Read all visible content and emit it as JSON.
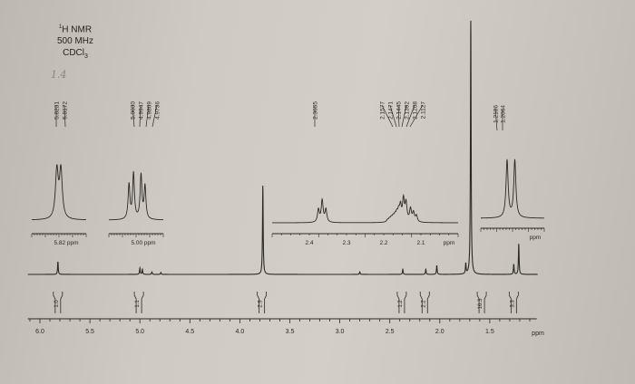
{
  "header": {
    "nucleus": "1H NMR",
    "nucleus_sup": "1",
    "nucleus_main": "H NMR",
    "frequency": "500 MHz",
    "solvent": "CDCl3",
    "solvent_main": "CDCl",
    "solvent_sub": "3"
  },
  "handwritten_note": "1.4",
  "chart_data": {
    "type": "line",
    "title": "",
    "xlabel": "ppm",
    "xlim": [
      6.1,
      1.05
    ],
    "x_reversed": true,
    "grid": false,
    "x_ticks": [
      "6.0",
      "5.5",
      "5.0",
      "4.5",
      "4.0",
      "3.5",
      "3.0",
      "2.5",
      "2.0",
      "1.5"
    ],
    "x_tick_values": [
      6.0,
      5.5,
      5.0,
      4.5,
      4.0,
      3.5,
      3.0,
      2.5,
      2.0,
      1.5
    ],
    "peaks": [
      {
        "ppm": 5.82,
        "rel_height": 0.05
      },
      {
        "ppm": 5.0,
        "rel_height": 0.025
      },
      {
        "ppm": 4.975,
        "rel_height": 0.02
      },
      {
        "ppm": 4.88,
        "rel_height": 0.01
      },
      {
        "ppm": 4.79,
        "rel_height": 0.008
      },
      {
        "ppm": 3.77,
        "rel_height": 0.35
      },
      {
        "ppm": 2.8,
        "rel_height": 0.01
      },
      {
        "ppm": 2.37,
        "rel_height": 0.02
      },
      {
        "ppm": 2.14,
        "rel_height": 0.02
      },
      {
        "ppm": 2.03,
        "rel_height": 0.035
      },
      {
        "ppm": 1.74,
        "rel_height": 0.04
      },
      {
        "ppm": 1.69,
        "rel_height": 1.0
      },
      {
        "ppm": 1.26,
        "rel_height": 0.04
      },
      {
        "ppm": 1.21,
        "rel_height": 0.12
      }
    ],
    "integrals": [
      {
        "ppm": 5.82,
        "value": "1.0"
      },
      {
        "ppm": 5.01,
        "value": "1.1"
      },
      {
        "ppm": 3.78,
        "value": "2.9"
      },
      {
        "ppm": 2.38,
        "value": "1.2"
      },
      {
        "ppm": 2.15,
        "value": "2.2"
      },
      {
        "ppm": 1.58,
        "value": "16.3"
      },
      {
        "ppm": 1.26,
        "value": "3.3"
      }
    ],
    "insets": [
      {
        "axis_label": "5.82 ppm",
        "xlim": [
          5.86,
          5.78
        ],
        "peaks": [
          5.8231,
          5.8172
        ],
        "peak_labels": [
          "5.8231",
          "5.8172"
        ]
      },
      {
        "axis_label": "5.00 ppm",
        "xlim": [
          5.04,
          4.94
        ],
        "peaks": [
          5.003,
          4.9947,
          4.9809,
          4.9736
        ],
        "peak_labels": [
          "5.0030",
          "4.9947",
          "4.9809",
          "4.9736"
        ]
      },
      {
        "axis_label": "ppm",
        "xlim": [
          2.5,
          2.0
        ],
        "x_ticks": [
          "2.4",
          "2.3",
          "2.2",
          "2.1"
        ],
        "x_tick_values": [
          2.4,
          2.3,
          2.2,
          2.1
        ],
        "peaks": [
          2.3655
        ],
        "peak_labels": [
          "2.3655"
        ],
        "peak_labels_2": [
          "2.1577",
          "2.1471",
          "2.1445",
          "2.1392",
          "2.1208",
          "2.1127"
        ]
      },
      {
        "axis_label": "ppm",
        "xlim": [
          1.26,
          1.16
        ],
        "peaks": [
          1.2186,
          1.2064
        ],
        "peak_labels": [
          "1.2186",
          "1.2064"
        ]
      }
    ]
  },
  "colors": {
    "ink": "#2b2926",
    "paper": "#cfcac3"
  }
}
